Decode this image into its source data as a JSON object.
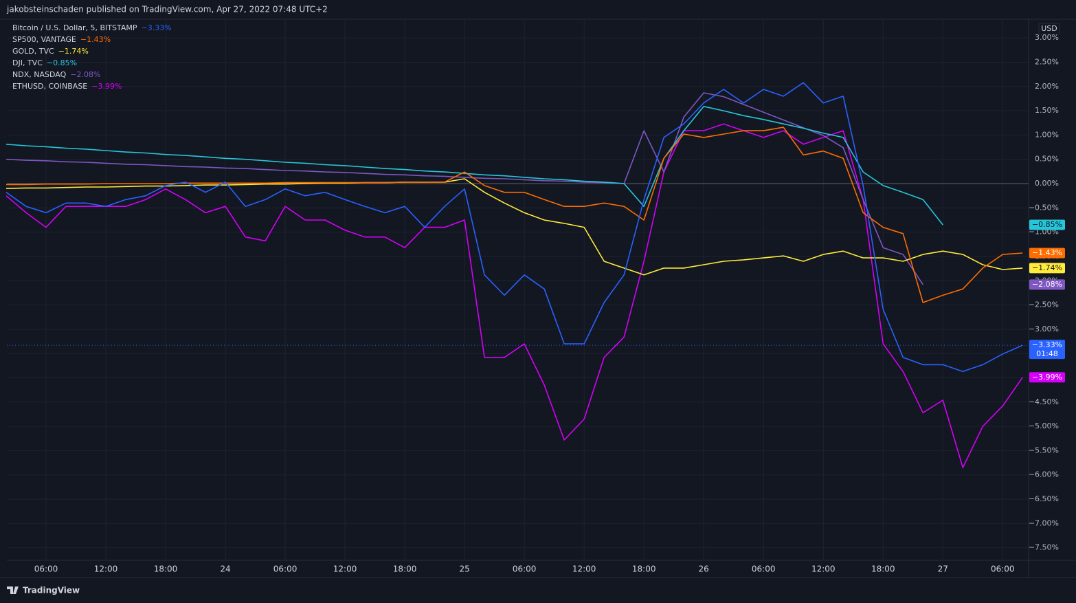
{
  "header": "jakobsteinschaden published on TradingView.com, Apr 27, 2022 07:48 UTC+2",
  "footer": "TradingView",
  "chart_data": {
    "type": "line",
    "currency": "USD",
    "x": [
      2,
      4,
      6,
      8,
      10,
      12,
      14,
      16,
      18,
      20,
      22,
      24,
      26,
      28,
      30,
      32,
      34,
      36,
      38,
      40,
      42,
      44,
      46,
      48,
      50,
      52,
      54,
      56,
      58,
      60,
      62,
      64,
      66,
      68,
      70,
      72,
      74,
      76,
      78,
      80,
      82,
      84,
      86,
      88,
      90,
      92,
      94,
      96,
      98,
      100,
      102,
      104
    ],
    "xlim": [
      2.07,
      104.6
    ],
    "xticks": [
      {
        "value": 6,
        "label": "06:00"
      },
      {
        "value": 12,
        "label": "12:00"
      },
      {
        "value": 18,
        "label": "18:00"
      },
      24,
      {
        "value": 30,
        "label": "06:00"
      },
      {
        "value": 36,
        "label": "12:00"
      },
      {
        "value": 42,
        "label": "18:00"
      },
      {
        "value": 48,
        "label": "25"
      },
      {
        "value": 54,
        "label": "06:00"
      },
      {
        "value": 60,
        "label": "12:00"
      },
      {
        "value": 66,
        "label": "18:00"
      },
      {
        "value": 72,
        "label": "26"
      },
      {
        "value": 78,
        "label": "06:00"
      },
      {
        "value": 84,
        "label": "12:00"
      },
      {
        "value": 90,
        "label": "18:00"
      },
      {
        "value": 96,
        "label": "27"
      },
      {
        "value": 102,
        "label": "06:00"
      }
    ],
    "ylim": [
      -7.76,
      3.385
    ],
    "yticks": [
      {
        "value": 3,
        "label": "3.00%"
      },
      {
        "value": 2.5,
        "label": "2.50%"
      },
      {
        "value": 2,
        "label": "2.00%"
      },
      {
        "value": 1.5,
        "label": "1.50%"
      },
      {
        "value": 1,
        "label": "1.00%"
      },
      {
        "value": 0.5,
        "label": "0.50%"
      },
      {
        "value": 0,
        "label": "0.00%"
      },
      {
        "value": -0.5,
        "label": "−0.50%"
      },
      {
        "value": -1,
        "label": "−1.00%"
      },
      {
        "value": -1.5,
        "label": "−1.50%"
      },
      {
        "value": -2,
        "label": "−2.00%"
      },
      {
        "value": -2.5,
        "label": "−2.50%"
      },
      {
        "value": -3,
        "label": "−3.00%"
      },
      {
        "value": -3.5,
        "label": "−3.50%"
      },
      {
        "value": -4,
        "label": "−4.00%"
      },
      {
        "value": -4.5,
        "label": "−4.50%"
      },
      {
        "value": -5,
        "label": "−5.00%"
      },
      {
        "value": -5.5,
        "label": "−5.50%"
      },
      {
        "value": -6,
        "label": "−6.00%"
      },
      {
        "value": -6.5,
        "label": "−6.50%"
      },
      {
        "value": -7,
        "label": "−7.00%"
      },
      {
        "value": -7.5,
        "label": "−7.50%"
      }
    ],
    "baseline": 0,
    "grid": true,
    "series": [
      {
        "name": "Bitcoin / U.S. Dollar, 5, BITSTAMP",
        "color": "#2962ff",
        "change_label": "−3.33%",
        "countdown": "01:48",
        "values": [
          -0.18,
          -0.47,
          -0.6,
          -0.4,
          -0.4,
          -0.47,
          -0.33,
          -0.25,
          -0.04,
          0.03,
          -0.18,
          0.03,
          -0.47,
          -0.33,
          -0.11,
          -0.25,
          -0.18,
          -0.33,
          -0.47,
          -0.6,
          -0.47,
          -0.9,
          -0.47,
          -0.11,
          -1.88,
          -2.3,
          -1.88,
          -2.17,
          -3.3,
          -3.3,
          -2.45,
          -1.88,
          -0.33,
          0.95,
          1.23,
          1.66,
          1.94,
          1.66,
          1.94,
          1.8,
          2.08,
          1.66,
          1.8,
          -0.04,
          -2.59,
          -3.58,
          -3.73,
          -3.73,
          -3.87,
          -3.73,
          -3.51,
          -3.33
        ]
      },
      {
        "name": "SP500, VANTAGE",
        "color": "#ff6d00",
        "change_label": "−1.43%",
        "values": [
          -0.02,
          -0.02,
          -0.01,
          -0.01,
          -0.01,
          0,
          0,
          0,
          0,
          0.01,
          0.01,
          0.01,
          0.01,
          0.01,
          0.02,
          0.02,
          0.02,
          0.02,
          0.02,
          0.02,
          0.03,
          0.03,
          0.03,
          0.24,
          -0.04,
          -0.18,
          -0.18,
          -0.33,
          -0.47,
          -0.47,
          -0.4,
          -0.47,
          -0.75,
          0.52,
          1.02,
          0.95,
          1.02,
          1.09,
          1.09,
          1.16,
          0.59,
          0.67,
          0.52,
          -0.6,
          -0.9,
          -1.03,
          -2.45,
          -2.3,
          -2.17,
          -1.74,
          -1.46,
          -1.43
        ]
      },
      {
        "name": "GOLD, TVC",
        "color": "#ffeb3b",
        "change_label": "−1.74%",
        "values": [
          -0.1,
          -0.09,
          -0.09,
          -0.08,
          -0.07,
          -0.07,
          -0.06,
          -0.05,
          -0.05,
          -0.04,
          -0.03,
          -0.03,
          -0.02,
          -0.01,
          -0.01,
          0,
          0.01,
          0.01,
          0.02,
          0.02,
          0.03,
          0.03,
          0.03,
          0.1,
          -0.18,
          -0.4,
          -0.6,
          -0.75,
          -0.82,
          -0.9,
          -1.6,
          -1.74,
          -1.88,
          -1.74,
          -1.74,
          -1.67,
          -1.6,
          -1.57,
          -1.53,
          -1.49,
          -1.6,
          -1.46,
          -1.39,
          -1.53,
          -1.53,
          -1.6,
          -1.46,
          -1.39,
          -1.46,
          -1.67,
          -1.77,
          -1.74
        ]
      },
      {
        "name": "DJI, TVC",
        "color": "#26c6da",
        "change_label": "−0.85%",
        "values": [
          0.81,
          0.78,
          0.76,
          0.73,
          0.71,
          0.68,
          0.65,
          0.63,
          0.6,
          0.58,
          0.55,
          0.52,
          0.5,
          0.47,
          0.44,
          0.42,
          0.39,
          0.37,
          0.34,
          0.31,
          0.29,
          0.26,
          0.24,
          0.21,
          0.18,
          0.16,
          0.13,
          0.1,
          0.08,
          0.05,
          0.03,
          0,
          -0.47,
          0.52,
          1.09,
          1.59,
          1.5,
          1.4,
          1.32,
          1.23,
          1.14,
          1.04,
          0.95,
          0.24,
          -0.04,
          -0.18,
          -0.33,
          -0.85,
          null,
          null,
          null,
          null
        ]
      },
      {
        "name": "NDX, NASDAQ",
        "color": "#7e57c2",
        "change_label": "−2.08%",
        "values": [
          0.5,
          0.48,
          0.47,
          0.45,
          0.44,
          0.42,
          0.4,
          0.39,
          0.37,
          0.35,
          0.34,
          0.32,
          0.31,
          0.29,
          0.27,
          0.26,
          0.24,
          0.23,
          0.21,
          0.19,
          0.18,
          0.16,
          0.15,
          0.13,
          0.11,
          0.1,
          0.08,
          0.06,
          0.05,
          0.03,
          0.02,
          0,
          1.09,
          0.24,
          1.37,
          1.87,
          1.79,
          1.63,
          1.47,
          1.31,
          1.15,
          0.99,
          0.74,
          -0.33,
          -1.32,
          -1.46,
          -2.08,
          null,
          null,
          null,
          null,
          null
        ]
      },
      {
        "name": "ETHUSD, COINBASE",
        "color": "#d500f9",
        "change_label": "−3.99%",
        "values": [
          -0.25,
          -0.6,
          -0.9,
          -0.47,
          -0.47,
          -0.47,
          -0.47,
          -0.33,
          -0.11,
          -0.33,
          -0.6,
          -0.47,
          -1.1,
          -1.18,
          -0.47,
          -0.75,
          -0.75,
          -0.96,
          -1.1,
          -1.1,
          -1.32,
          -0.9,
          -0.9,
          -0.75,
          -3.58,
          -3.58,
          -3.3,
          -4.15,
          -5.28,
          -4.85,
          -3.58,
          -3.16,
          -1.6,
          0.24,
          1.09,
          1.09,
          1.23,
          1.09,
          0.95,
          1.09,
          0.81,
          0.95,
          1.09,
          -0.33,
          -3.3,
          -3.87,
          -4.72,
          -4.46,
          -5.85,
          -5.0,
          -4.58,
          -3.99
        ]
      }
    ]
  }
}
